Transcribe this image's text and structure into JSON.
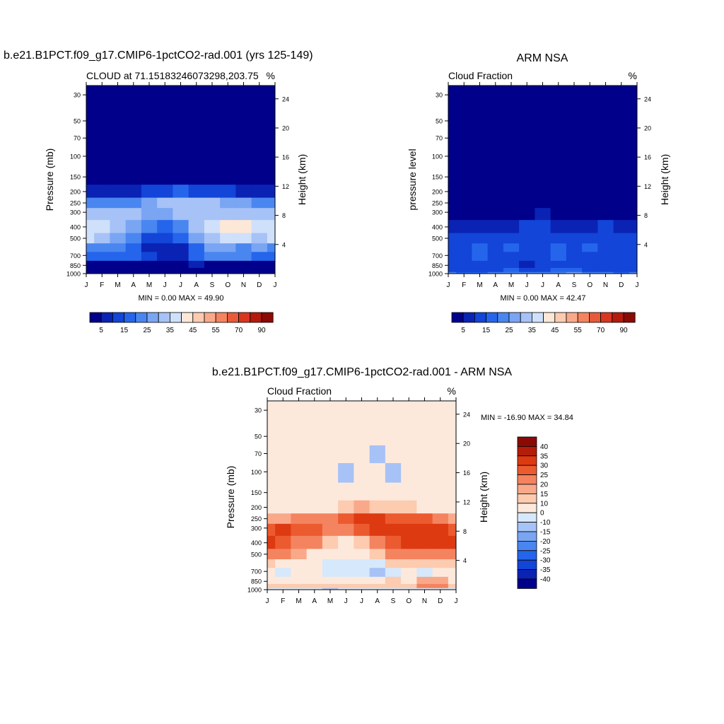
{
  "chart_data": [
    {
      "type": "heatmap",
      "title": "b.e21.B1PCT.f09_g17.CMIP6-1pctCO2-rad.001 (yrs 125-149)",
      "subtitle_left": "CLOUD at 71.15183246073298,203.75",
      "subtitle_right": "%",
      "ylabel": "Pressure (mb)",
      "ylabel_right": "Height (km)",
      "min_max": "MIN =   0.00 MAX =  49.90",
      "x_ticks": [
        "J",
        "F",
        "M",
        "A",
        "M",
        "J",
        "J",
        "A",
        "S",
        "O",
        "N",
        "D",
        "J"
      ],
      "y_ticks": [
        "30",
        "50",
        "70",
        "100",
        "150",
        "200",
        "250",
        "300",
        "400",
        "500",
        "700",
        "850",
        "1000"
      ],
      "y_ticks_right": [
        "24",
        "20",
        "16",
        "12",
        "8",
        "4"
      ],
      "colorbar_labels": [
        "5",
        "15",
        "25",
        "35",
        "45",
        "55",
        "70",
        "90"
      ],
      "levels": [
        0,
        5,
        10,
        15,
        20,
        25,
        30,
        35,
        40,
        45,
        50,
        55,
        60,
        70,
        80,
        90
      ],
      "pressure_levels": [
        1000,
        925,
        850,
        700,
        600,
        500,
        400,
        300,
        250,
        200,
        150,
        100,
        70,
        50,
        30
      ],
      "values": [
        [
          1,
          1,
          1,
          1,
          1,
          1,
          1,
          1,
          1,
          1,
          1,
          1,
          1
        ],
        [
          2,
          2,
          2,
          2,
          2,
          2,
          2,
          2,
          2,
          2,
          2,
          2,
          2
        ],
        [
          3,
          4,
          4,
          3,
          3,
          4,
          4,
          5,
          4,
          4,
          4,
          3,
          3
        ],
        [
          18,
          17,
          19,
          18,
          10,
          8,
          7,
          15,
          20,
          22,
          20,
          19,
          18
        ],
        [
          24,
          22,
          21,
          18,
          8,
          6,
          7,
          18,
          28,
          25,
          24,
          25,
          24
        ],
        [
          36,
          34,
          28,
          22,
          14,
          12,
          16,
          28,
          34,
          36,
          38,
          34,
          36
        ],
        [
          38,
          36,
          30,
          28,
          20,
          18,
          22,
          32,
          38,
          40,
          42,
          38,
          38
        ],
        [
          32,
          32,
          30,
          30,
          26,
          26,
          30,
          34,
          34,
          34,
          34,
          32,
          32
        ],
        [
          20,
          20,
          24,
          24,
          26,
          30,
          32,
          32,
          30,
          28,
          26,
          22,
          20
        ],
        [
          6,
          6,
          8,
          8,
          10,
          14,
          16,
          14,
          12,
          10,
          8,
          6,
          6
        ],
        [
          1,
          1,
          1,
          1,
          1,
          2,
          3,
          2,
          1,
          1,
          1,
          1,
          1
        ],
        [
          1,
          1,
          1,
          1,
          1,
          1,
          1,
          1,
          1,
          1,
          1,
          1,
          1
        ],
        [
          1,
          1,
          1,
          1,
          1,
          1,
          1,
          1,
          1,
          1,
          1,
          1,
          1
        ],
        [
          1,
          1,
          1,
          1,
          1,
          1,
          1,
          1,
          1,
          1,
          1,
          1,
          1
        ],
        [
          1,
          1,
          1,
          1,
          1,
          1,
          1,
          1,
          1,
          1,
          1,
          1,
          1
        ]
      ]
    },
    {
      "type": "heatmap",
      "title": "ARM NSA",
      "subtitle_left": "Cloud Fraction",
      "subtitle_right": "%",
      "ylabel": "pressure level",
      "ylabel_right": "Height (km)",
      "min_max": "MIN =   0.00 MAX =  42.47",
      "x_ticks": [
        "J",
        "F",
        "M",
        "A",
        "M",
        "J",
        "J",
        "A",
        "S",
        "O",
        "N",
        "D",
        "J"
      ],
      "y_ticks": [
        "30",
        "50",
        "70",
        "100",
        "150",
        "200",
        "250",
        "300",
        "400",
        "500",
        "700",
        "850",
        "1000"
      ],
      "y_ticks_right": [
        "24",
        "20",
        "16",
        "12",
        "8",
        "4"
      ],
      "colorbar_labels": [
        "5",
        "15",
        "25",
        "35",
        "45",
        "55",
        "70",
        "90"
      ],
      "levels": [
        0,
        5,
        10,
        15,
        20,
        25,
        30,
        35,
        40,
        45,
        50,
        55,
        60,
        70,
        80,
        90
      ],
      "pressure_levels": [
        1000,
        925,
        850,
        700,
        600,
        500,
        400,
        300,
        250,
        200,
        150,
        100,
        70,
        50,
        30
      ],
      "values": [
        [
          20,
          18,
          19,
          20,
          24,
          22,
          20,
          23,
          26,
          22,
          20,
          19,
          20
        ],
        [
          12,
          11,
          12,
          14,
          16,
          12,
          12,
          16,
          15,
          13,
          12,
          11,
          12
        ],
        [
          10,
          11,
          12,
          12,
          13,
          9,
          11,
          14,
          13,
          12,
          11,
          12,
          10
        ],
        [
          13,
          12,
          15,
          13,
          14,
          11,
          13,
          16,
          14,
          14,
          12,
          13,
          13
        ],
        [
          14,
          13,
          15,
          14,
          15,
          13,
          14,
          15,
          14,
          15,
          13,
          14,
          14
        ],
        [
          12,
          12,
          13,
          14,
          13,
          13,
          14,
          14,
          13,
          13,
          14,
          13,
          12
        ],
        [
          8,
          7,
          6,
          8,
          8,
          10,
          11,
          9,
          9,
          7,
          10,
          8,
          8
        ],
        [
          3,
          2,
          2,
          3,
          3,
          4,
          5,
          4,
          3,
          3,
          3,
          2,
          3
        ],
        [
          1,
          1,
          1,
          1,
          2,
          2,
          2,
          2,
          2,
          1,
          1,
          1,
          1
        ],
        [
          0,
          0,
          0,
          0,
          1,
          1,
          1,
          1,
          1,
          0,
          0,
          0,
          0
        ],
        [
          0,
          0,
          0,
          0,
          0,
          0,
          0,
          0,
          0,
          0,
          0,
          0,
          0
        ],
        [
          0,
          0,
          0,
          0,
          0,
          0,
          0,
          0,
          0,
          0,
          0,
          0,
          0
        ],
        [
          0,
          0,
          0,
          0,
          0,
          0,
          0,
          0,
          0,
          0,
          0,
          0,
          0
        ],
        [
          0,
          0,
          0,
          0,
          0,
          0,
          0,
          0,
          0,
          0,
          0,
          0,
          0
        ],
        [
          0,
          0,
          0,
          0,
          0,
          0,
          0,
          0,
          0,
          0,
          0,
          0,
          0
        ]
      ]
    },
    {
      "type": "heatmap",
      "title": "b.e21.B1PCT.f09_g17.CMIP6-1pctCO2-rad.001 - ARM NSA",
      "subtitle_left": "Cloud Fraction",
      "subtitle_right": "%",
      "ylabel": "Pressure (mb)",
      "ylabel_right": "Height (km)",
      "min_max": "MIN = -16.90 MAX =  34.84",
      "x_ticks": [
        "J",
        "F",
        "M",
        "A",
        "M",
        "J",
        "J",
        "A",
        "S",
        "O",
        "N",
        "D",
        "J"
      ],
      "y_ticks": [
        "30",
        "50",
        "70",
        "100",
        "150",
        "200",
        "250",
        "300",
        "400",
        "500",
        "700",
        "850",
        "1000"
      ],
      "y_ticks_right": [
        "24",
        "20",
        "16",
        "12",
        "8",
        "4"
      ],
      "colorbar_labels": [
        "40",
        "35",
        "30",
        "25",
        "20",
        "15",
        "10",
        "0",
        "-10",
        "-15",
        "-20",
        "-25",
        "-30",
        "-35",
        "-40"
      ],
      "levels": [
        -45,
        -40,
        -35,
        -30,
        -25,
        -20,
        -15,
        -10,
        0,
        10,
        15,
        20,
        25,
        30,
        35,
        40,
        45
      ],
      "pressure_levels": [
        1000,
        925,
        850,
        700,
        600,
        500,
        400,
        300,
        250,
        200,
        150,
        100,
        70,
        50,
        30
      ],
      "values": [
        [
          -6,
          -3,
          -4,
          -6,
          -12,
          -5,
          -5,
          -8,
          -8,
          -6,
          -4,
          -3,
          -6
        ],
        [
          12,
          14,
          10,
          12,
          10,
          12,
          12,
          14,
          14,
          14,
          22,
          20,
          12
        ],
        [
          6,
          9,
          6,
          8,
          3,
          6,
          6,
          9,
          10,
          8,
          17,
          16,
          6
        ],
        [
          5,
          -3,
          4,
          5,
          -4,
          -5,
          -6,
          -11,
          -3,
          6,
          -3,
          2,
          5
        ],
        [
          10,
          9,
          6,
          4,
          -6,
          -7,
          -7,
          -9,
          14,
          10,
          11,
          11,
          10
        ],
        [
          24,
          21,
          15,
          8,
          1,
          1,
          2,
          13,
          21,
          22,
          24,
          21,
          24
        ],
        [
          30,
          29,
          24,
          20,
          12,
          8,
          11,
          23,
          29,
          33,
          32,
          30,
          30
        ],
        [
          29,
          30,
          28,
          27,
          23,
          22,
          25,
          30,
          31,
          31,
          31,
          30,
          29
        ],
        [
          19,
          19,
          23,
          23,
          24,
          28,
          30,
          30,
          28,
          27,
          25,
          21,
          19
        ],
        [
          6,
          6,
          8,
          8,
          9,
          13,
          15,
          13,
          11,
          10,
          8,
          6,
          6
        ],
        [
          1,
          1,
          1,
          1,
          1,
          2,
          3,
          2,
          1,
          1,
          1,
          1,
          1
        ],
        [
          1,
          1,
          1,
          1,
          1,
          -11,
          1,
          1,
          -11,
          1,
          1,
          1,
          1
        ],
        [
          1,
          1,
          1,
          1,
          1,
          1,
          1,
          -11,
          1,
          1,
          1,
          1,
          1
        ],
        [
          1,
          1,
          1,
          1,
          1,
          1,
          1,
          1,
          1,
          1,
          1,
          1,
          1
        ],
        [
          1,
          1,
          1,
          1,
          1,
          1,
          1,
          1,
          1,
          1,
          1,
          1,
          1
        ]
      ]
    }
  ],
  "palettes": {
    "abs": [
      "#00008b",
      "#0a23b4",
      "#1245d8",
      "#2565ec",
      "#4a86f0",
      "#7aa5f3",
      "#a6c2f6",
      "#cfe0fa",
      "#fde7d7",
      "#fccbb0",
      "#f9a98a",
      "#f4845f",
      "#e95a3a",
      "#d8361f",
      "#b41b0d",
      "#8b0a05"
    ],
    "diff": [
      "#00008b",
      "#0a23b4",
      "#1245d8",
      "#2565ec",
      "#4a86f0",
      "#7aa5f3",
      "#a6c2f6",
      "#d6e8fb",
      "#fde9dc",
      "#fccbb0",
      "#f9a98a",
      "#f4845f",
      "#ec5a30",
      "#dd3a12",
      "#b51c0a",
      "#8b0a05"
    ]
  }
}
